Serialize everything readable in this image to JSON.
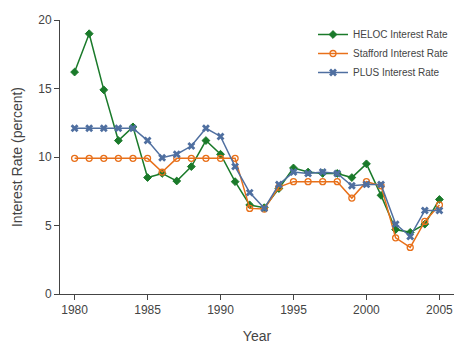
{
  "chart_data": {
    "type": "line",
    "xlabel": "Year",
    "ylabel": "Interest Rate (percent)",
    "x": [
      1980,
      1981,
      1982,
      1983,
      1984,
      1985,
      1986,
      1987,
      1988,
      1989,
      1990,
      1991,
      1992,
      1993,
      1994,
      1995,
      1996,
      1997,
      1998,
      1999,
      2000,
      2001,
      2002,
      2003,
      2004,
      2005
    ],
    "series": [
      {
        "name": "HELOC Interest Rate",
        "color": "#1a7a2a",
        "marker": "diamond",
        "values": [
          16.2,
          19.0,
          14.9,
          11.2,
          12.2,
          8.5,
          8.8,
          8.25,
          9.3,
          11.2,
          10.2,
          8.2,
          6.5,
          6.3,
          7.7,
          9.2,
          8.9,
          8.8,
          8.8,
          8.5,
          9.5,
          7.2,
          4.7,
          4.5,
          5.1,
          6.9
        ]
      },
      {
        "name": "Stafford Interest Rate",
        "color": "#e8701a",
        "marker": "circle-open",
        "values": [
          9.9,
          9.9,
          9.9,
          9.9,
          9.9,
          9.9,
          8.9,
          9.9,
          9.9,
          9.9,
          9.9,
          9.9,
          6.25,
          6.2,
          7.8,
          8.2,
          8.2,
          8.2,
          8.2,
          7.0,
          8.2,
          7.9,
          4.1,
          3.4,
          5.3,
          6.5
        ]
      },
      {
        "name": "PLUS Interest Rate",
        "color": "#4f6fa0",
        "marker": "x",
        "values": [
          12.1,
          12.1,
          12.1,
          12.1,
          12.1,
          11.2,
          9.95,
          10.2,
          10.8,
          12.1,
          11.5,
          9.3,
          7.4,
          6.25,
          8.0,
          8.9,
          8.8,
          8.9,
          8.8,
          7.9,
          8.0,
          8.0,
          5.1,
          4.2,
          6.1,
          6.1
        ]
      }
    ],
    "xlim": [
      1979,
      2006
    ],
    "xticks": [
      1980,
      1985,
      1990,
      1995,
      2000,
      2005
    ],
    "ylim": [
      0,
      20
    ],
    "yticks": [
      0,
      5,
      10,
      15,
      20
    ],
    "grid": false,
    "legend": "upper right"
  }
}
